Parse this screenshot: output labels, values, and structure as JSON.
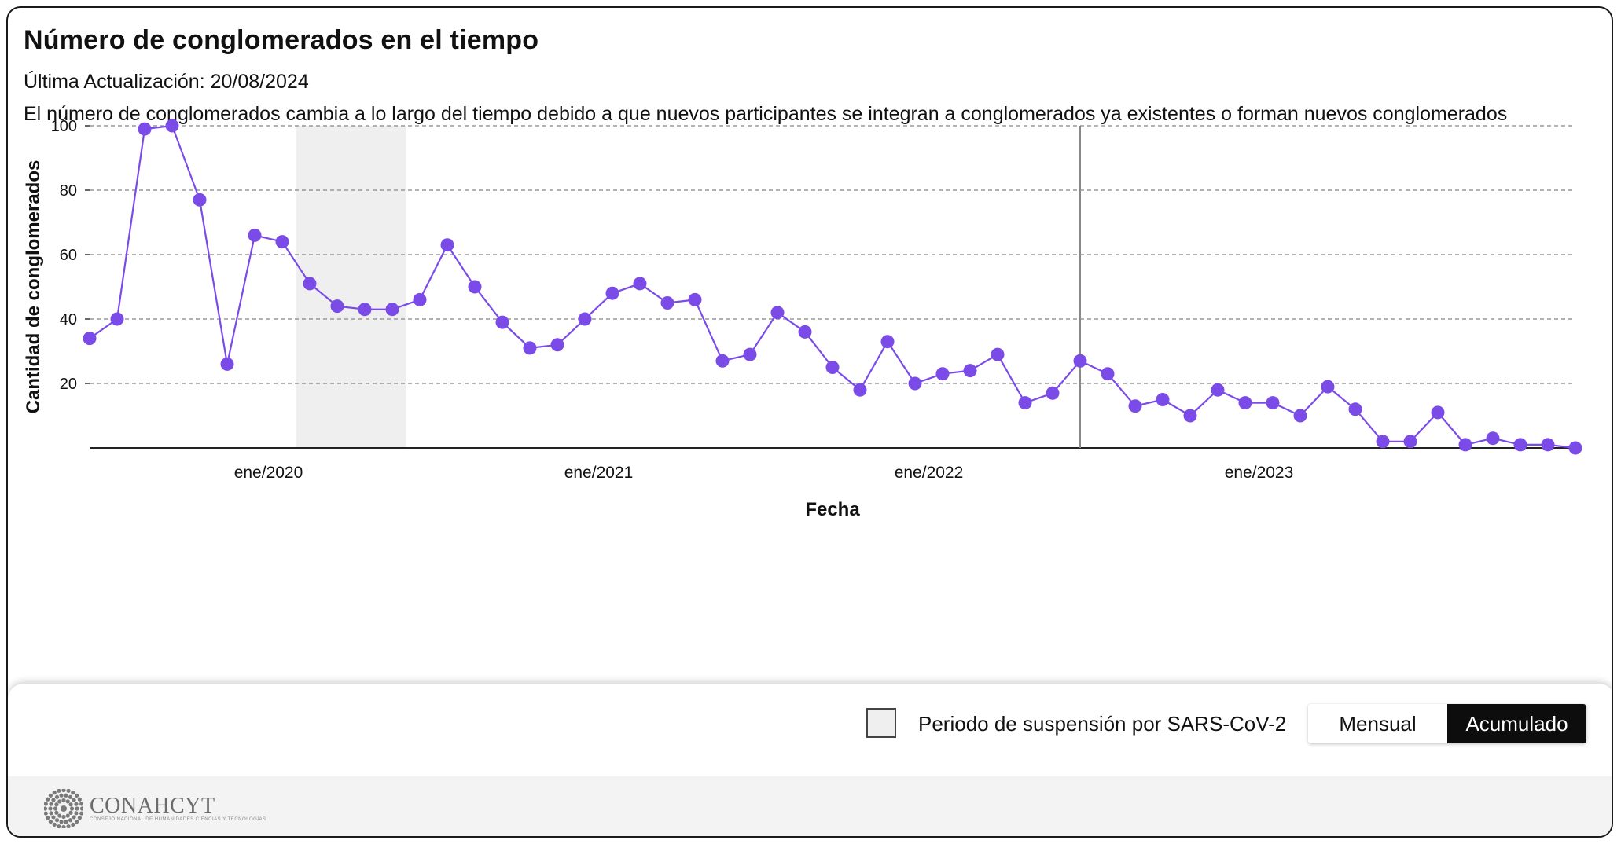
{
  "header": {
    "title": "Número de conglomerados en el tiempo",
    "updated": "Última Actualización: 20/08/2024",
    "description": "El número de conglomerados cambia a lo largo del tiempo debido a que nuevos participantes se integran a conglomerados ya existentes o forman nuevos conglomerados"
  },
  "legend": {
    "suspension_label": "Periodo de suspensión por SARS-CoV-2"
  },
  "toggle": {
    "monthly_label": "Mensual",
    "cumulative_label": "Acumulado",
    "selected": "Acumulado"
  },
  "logo": {
    "name": "CONAHCYT",
    "subtitle": "CONSEJO NACIONAL DE HUMANIDADES CIENCIAS Y TECNOLOGÍAS"
  },
  "colors": {
    "series": "#7b4be8",
    "marker": "#7b4be8",
    "suspension": "#efefef",
    "grid": "#999999"
  },
  "chart_data": {
    "type": "line",
    "xlabel": "Fecha",
    "ylabel": "Cantidad de conglomerados",
    "ylim": [
      0,
      100
    ],
    "yticks": [
      20,
      40,
      60,
      80,
      100
    ],
    "xticks": [
      {
        "label": "ene/2020",
        "date": "2020-01"
      },
      {
        "label": "ene/2021",
        "date": "2021-01"
      },
      {
        "label": "ene/2022",
        "date": "2022-01"
      },
      {
        "label": "ene/2023",
        "date": "2023-01"
      }
    ],
    "grid": "horizontal dashed",
    "suspension_period": [
      "2020-03",
      "2020-07"
    ],
    "reference_line": "2022-07",
    "series": [
      {
        "x": [
          "2019-07",
          "2019-08",
          "2019-09",
          "2019-10",
          "2019-11",
          "2019-12",
          "2020-01",
          "2020-02",
          "2020-03",
          "2020-04",
          "2020-05",
          "2020-06",
          "2020-07",
          "2020-08",
          "2020-09",
          "2020-10",
          "2020-11",
          "2020-12",
          "2021-01",
          "2021-02",
          "2021-03",
          "2021-04",
          "2021-05",
          "2021-06",
          "2021-07",
          "2021-08",
          "2021-09",
          "2021-10",
          "2021-11",
          "2021-12",
          "2022-01",
          "2022-02",
          "2022-03",
          "2022-04",
          "2022-05",
          "2022-06",
          "2022-07",
          "2022-08",
          "2022-09",
          "2022-10",
          "2022-11",
          "2022-12",
          "2023-01",
          "2023-02",
          "2023-03",
          "2023-04",
          "2023-05",
          "2023-06",
          "2023-07",
          "2023-08",
          "2023-09",
          "2023-10",
          "2023-11",
          "2023-12",
          "2024-01"
        ],
        "y": [
          34,
          40,
          99,
          100,
          77,
          26,
          66,
          64,
          51,
          44,
          43,
          43,
          46,
          63,
          50,
          39,
          31,
          32,
          40,
          48,
          51,
          45,
          46,
          27,
          29,
          42,
          36,
          25,
          18,
          33,
          20,
          23,
          24,
          29,
          14,
          17,
          27,
          23,
          13,
          15,
          10,
          18,
          14,
          14,
          10,
          19,
          12,
          2,
          2,
          11,
          1,
          3,
          1,
          1,
          0
        ]
      }
    ]
  }
}
